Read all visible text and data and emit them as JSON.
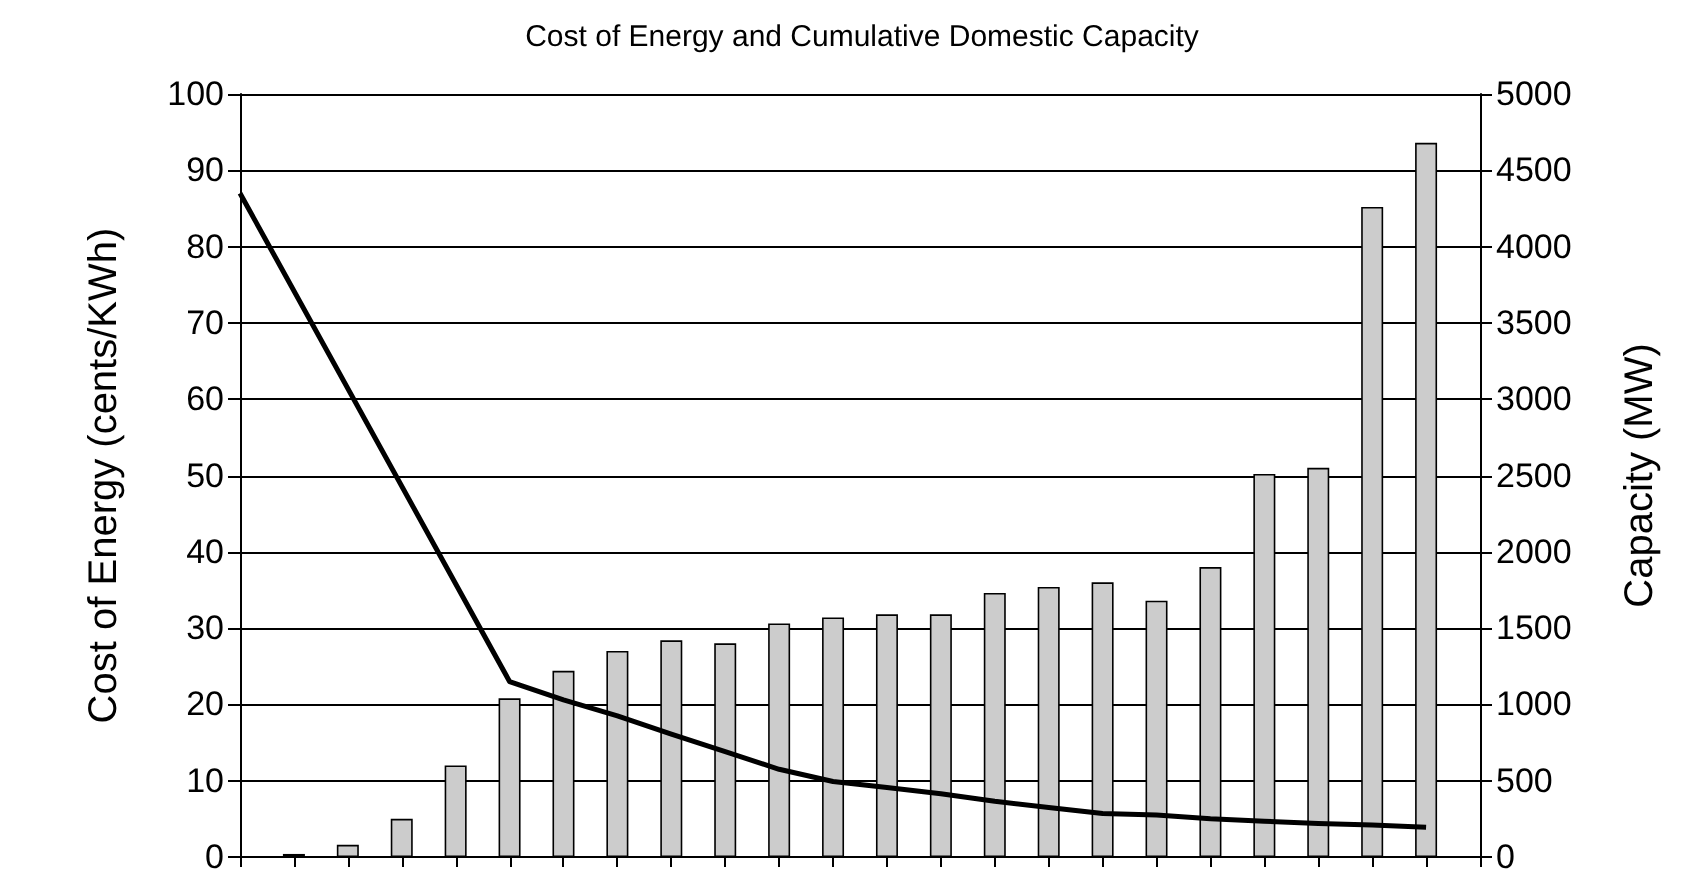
{
  "chart_data": {
    "type": "bar",
    "title": "Cost of Energy and Cumulative Domestic Capacity",
    "ylabel": "Cost of Energy (cents/KWh)",
    "y2label": "Capacity (MW)",
    "categories": [
      null,
      null,
      null,
      null,
      null,
      null,
      null,
      null,
      null,
      null,
      null,
      null,
      null,
      null,
      null,
      null,
      null,
      null,
      null,
      null,
      null,
      null,
      null,
      null
    ],
    "series": [
      {
        "axis": "y2",
        "color": "#cccccc",
        "values": [
          null,
          20,
          80,
          250,
          600,
          1040,
          1220,
          1350,
          1420,
          1400,
          1530,
          1570,
          1590,
          1590,
          1730,
          1770,
          1800,
          1680,
          1900,
          2510,
          2550,
          4260,
          4680,
          null
        ]
      },
      {
        "type": "line",
        "axis": "y",
        "color": "#000000",
        "values": [
          87,
          null,
          null,
          null,
          null,
          23,
          20.6,
          18.5,
          16.1,
          13.8,
          11.5,
          9.9,
          9.1,
          8.3,
          7.3,
          6.5,
          5.7,
          5.5,
          5,
          4.7,
          4.4,
          4.2,
          3.9,
          null
        ]
      }
    ],
    "ylim": [
      0,
      100
    ],
    "yticks": [
      0,
      10,
      20,
      30,
      40,
      50,
      60,
      70,
      80,
      90,
      100
    ],
    "y2lim": [
      0,
      5000
    ],
    "y2ticks": [
      0,
      500,
      1000,
      1500,
      2000,
      2500,
      3000,
      3500,
      4000,
      4500,
      5000
    ],
    "grid": "y",
    "marker": "none",
    "line_style": "solid"
  }
}
